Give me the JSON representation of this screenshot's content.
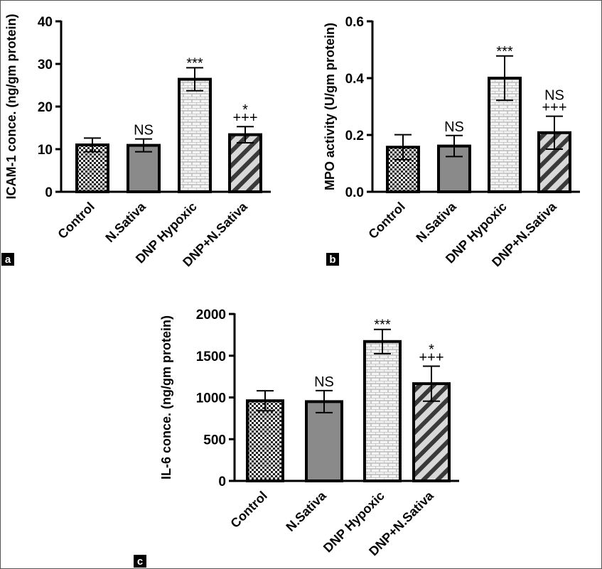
{
  "chart_data": [
    {
      "type": "bar",
      "panel_letter": "a",
      "ylabel": "ICAM-1 conce. (ng/gm protein)",
      "ylim": [
        0,
        40
      ],
      "yticks": [
        "0",
        "10",
        "20",
        "30",
        "40"
      ],
      "categories": [
        "Control",
        "N.Sativa",
        "DNP Hypoxic",
        "DNP+N.Sativa"
      ],
      "values": [
        11,
        10.9,
        26.4,
        13.4
      ],
      "errors": [
        1.6,
        1.5,
        2.7,
        1.9
      ],
      "annotations": [
        [],
        [
          "NS"
        ],
        [
          "***"
        ],
        [
          "*",
          "+++"
        ]
      ],
      "patterns": [
        "checker",
        "gray",
        "brick",
        "diagonal"
      ],
      "grid": false
    },
    {
      "type": "bar",
      "panel_letter": "b",
      "ylabel": "MPO activity (U/gm protein)",
      "ylim": [
        0,
        0.6
      ],
      "yticks": [
        "0.0",
        "0.2",
        "0.4",
        "0.6"
      ],
      "categories": [
        "Control",
        "N.Sativa",
        "DNP Hypoxic",
        "DNP+N.Sativa"
      ],
      "values": [
        0.157,
        0.161,
        0.4,
        0.208
      ],
      "errors": [
        0.044,
        0.037,
        0.078,
        0.058
      ],
      "annotations": [
        [],
        [
          "NS"
        ],
        [
          "***"
        ],
        [
          "NS",
          "+++"
        ]
      ],
      "patterns": [
        "checker",
        "gray",
        "brick",
        "diagonal"
      ],
      "grid": false
    },
    {
      "type": "bar",
      "panel_letter": "c",
      "ylabel": "IL-6 conce. (ng/gm protein)",
      "ylim": [
        0,
        2000
      ],
      "yticks": [
        "0",
        "500",
        "1000",
        "1500",
        "2000"
      ],
      "categories": [
        "Control",
        "N.Sativa",
        "DNP Hypoxic",
        "DNP+N.Sativa"
      ],
      "values": [
        960,
        950,
        1670,
        1165
      ],
      "errors": [
        120,
        132,
        145,
        210
      ],
      "annotations": [
        [],
        [
          "NS"
        ],
        [
          "***"
        ],
        [
          "*",
          "+++"
        ]
      ],
      "patterns": [
        "checker",
        "gray",
        "brick",
        "diagonal"
      ],
      "grid": false
    }
  ],
  "colors": {
    "axis": "#000000",
    "bar_gray": "#8a8a8a",
    "pattern_light": "#d8d8d8",
    "panel_tag_bg": "#000000"
  }
}
